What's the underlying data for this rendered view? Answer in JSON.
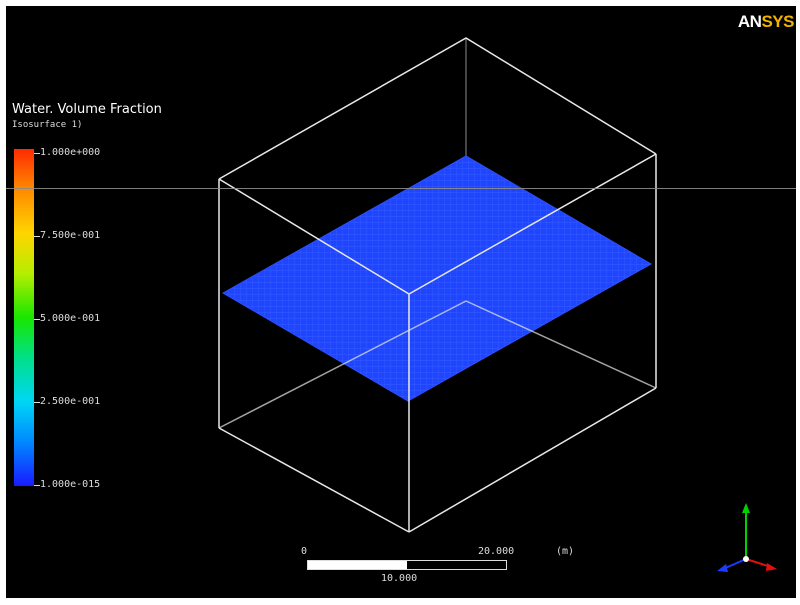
{
  "logo": {
    "prefix": "AN",
    "suffix": "SYS"
  },
  "legend": {
    "title": "Water. Volume Fraction",
    "subtitle": "Isosurface 1)",
    "ticks": [
      "1.000e+000",
      "7.500e-001",
      "5.000e-001",
      "2.500e-001",
      "1.000e-015"
    ]
  },
  "scale_bar": {
    "zero": "0",
    "max": "20.000",
    "unit": "(m)",
    "mid": "10.000",
    "filled_fraction": 0.5
  },
  "colors": {
    "surface": "#1f45ff",
    "box": "#e8e8e8",
    "background": "#000000"
  }
}
